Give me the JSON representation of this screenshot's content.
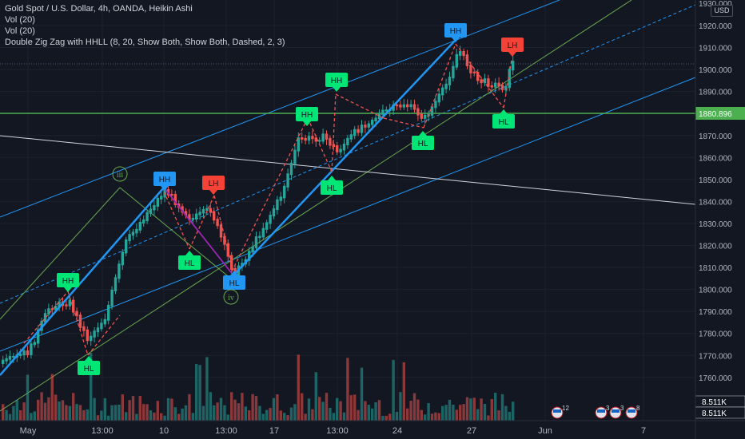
{
  "legend": {
    "title": "Gold Spot / U.S. Dollar, 4h, OANDA, Heikin Ashi",
    "line2": "Vol (20)",
    "line3": "Vol (20)",
    "line4": "Double Zig Zag with HHLL (8, 20, Show Both, Show Both, Dashed, 2, 3)"
  },
  "currency_label": "USD",
  "colors": {
    "background": "#131722",
    "bull": "#26a69a",
    "bear": "#ef5350",
    "blue": "#2196f3",
    "green_label": "#00e676",
    "red_label": "#f44336",
    "h_line": "#4caf50",
    "price_tag": "#4caf50"
  },
  "price_axis": {
    "ticks": [
      "1920.000",
      "1910.000",
      "1900.000",
      "1890.000",
      "1880.000",
      "1870.000",
      "1860.000",
      "1850.000",
      "1840.000",
      "1830.000",
      "1820.000",
      "1810.000",
      "1800.000",
      "1790.000",
      "1780.000",
      "1770.000",
      "1760.000"
    ],
    "top_partial": "1930.000",
    "price_tag": "1880.896",
    "vol_tag_1": "8.511K",
    "vol_tag_2": "8.511K"
  },
  "time_axis": [
    "May",
    "13:00",
    "10",
    "13:00",
    "17",
    "13:00",
    "24",
    "27",
    "Jun",
    "7"
  ],
  "event_badges": [
    "12",
    "3",
    "3",
    "8"
  ],
  "chart_data": {
    "type": "candlestick",
    "title": "Gold Spot / U.S. Dollar, 4h, OANDA, Heikin Ashi",
    "ylim": [
      1750,
      1930
    ],
    "horizontal_line": 1880.896,
    "zigzag_labels": [
      {
        "label": "HH",
        "type": "HH",
        "price": 1798.5
      },
      {
        "label": "HL",
        "type": "HL",
        "price": 1775
      },
      {
        "label": "HH",
        "type": "HH",
        "price": 1847
      },
      {
        "label": "HL",
        "type": "HL",
        "price": 1826
      },
      {
        "label": "LH",
        "type": "LH",
        "price": 1843
      },
      {
        "label": "HL",
        "type": "HL",
        "price": 1810
      },
      {
        "label": "HH",
        "type": "HH",
        "price": 1880
      },
      {
        "label": "HL",
        "type": "HL",
        "price": 1858
      },
      {
        "label": "HH",
        "type": "HH",
        "price": 1894
      },
      {
        "label": "HL",
        "type": "HL",
        "price": 1875
      },
      {
        "label": "HH",
        "type": "HH",
        "price": 1914
      },
      {
        "label": "HL",
        "type": "HL",
        "price": 1889
      },
      {
        "label": "LH",
        "type": "LH",
        "price": 1906
      }
    ],
    "elliott_labels": [
      "iii",
      "iv"
    ]
  }
}
